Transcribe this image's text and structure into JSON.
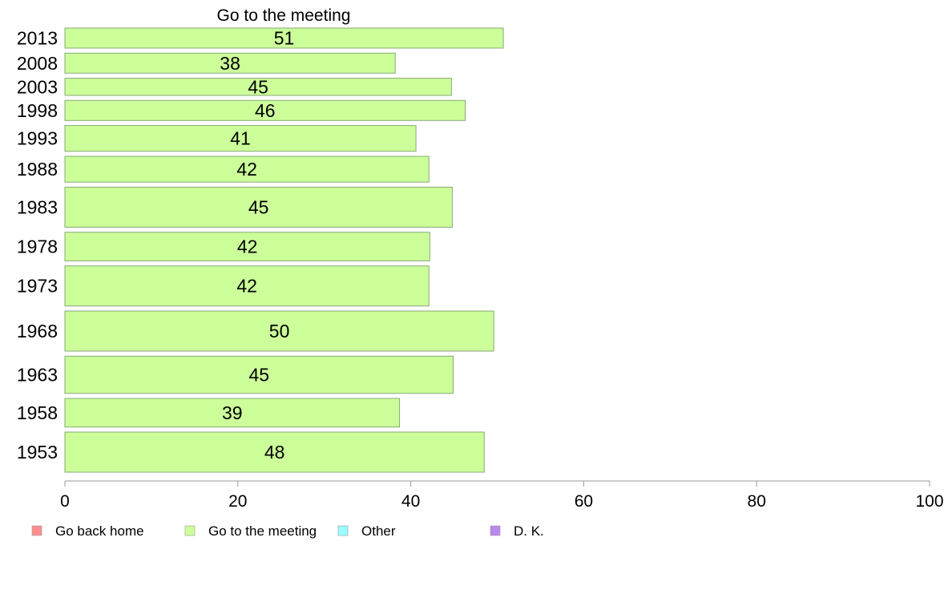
{
  "chart_data": {
    "type": "bar",
    "orientation": "horizontal",
    "title": "Go to the meeting",
    "xlabel": "",
    "ylabel": "",
    "xlim": [
      0,
      100
    ],
    "x_ticks": [
      0,
      20,
      40,
      60,
      80,
      100
    ],
    "grid": false,
    "categories": [
      "2013",
      "2008",
      "2003",
      "1998",
      "1993",
      "1988",
      "1983",
      "1978",
      "1973",
      "1968",
      "1963",
      "1958",
      "1953"
    ],
    "series": [
      {
        "name": "Go to the meeting",
        "color": "#ccff99",
        "values": [
          51,
          38,
          45,
          46,
          41,
          42,
          45,
          42,
          42,
          50,
          45,
          39,
          48
        ],
        "bar_values": [
          50.7,
          38.2,
          44.7,
          46.3,
          40.6,
          42.1,
          44.8,
          42.2,
          42.1,
          49.6,
          44.9,
          38.7,
          48.5
        ],
        "bar_weights": [
          0.7,
          0.7,
          0.6,
          0.7,
          0.9,
          0.9,
          1.4,
          1.0,
          1.4,
          1.4,
          1.3,
          1.0,
          1.4
        ]
      }
    ],
    "legend": {
      "placement": "bottom",
      "items": [
        {
          "label": "Go back home",
          "color": "#ff8f8f"
        },
        {
          "label": "Go to the meeting",
          "color": "#ccff99"
        },
        {
          "label": "Other",
          "color": "#99ffff"
        },
        {
          "label": "D. K.",
          "color": "#bb88ee"
        }
      ]
    }
  }
}
